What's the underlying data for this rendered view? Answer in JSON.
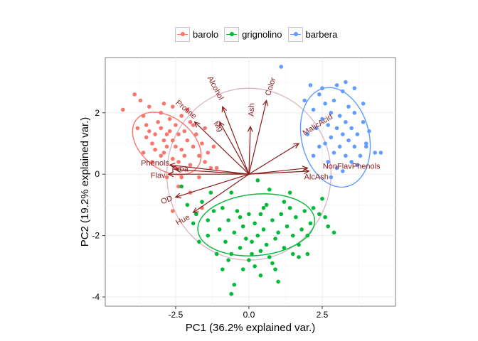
{
  "chart_data": {
    "type": "scatter",
    "title": "",
    "xlabel": "PC1 (36.2% explained var.)",
    "ylabel": "PC2 (19.2% explained var.)",
    "xlim": [
      -4.9,
      5.0
    ],
    "ylim": [
      -4.3,
      3.8
    ],
    "x_ticks": [
      -2.5,
      0.0,
      2.5
    ],
    "x_tick_labels": [
      "-2.5",
      "0.0",
      "2.5"
    ],
    "y_ticks": [
      -4,
      -2,
      0,
      2
    ],
    "y_tick_labels": [
      "-4",
      "-2",
      "0",
      "2"
    ],
    "grid": true,
    "legend_position": "top",
    "series": [
      {
        "name": "barolo",
        "color": "#F8766D",
        "ellipse": {
          "cx": -2.8,
          "cy": 1.0,
          "rx": 1.3,
          "ry": 0.85,
          "angle_deg": -35
        },
        "points": [
          [
            -4.3,
            2.1
          ],
          [
            -3.9,
            2.6
          ],
          [
            -3.7,
            2.4
          ],
          [
            -3.6,
            1.9
          ],
          [
            -3.5,
            1.6
          ],
          [
            -3.4,
            1.4
          ],
          [
            -3.5,
            1.2
          ],
          [
            -3.3,
            1.0
          ],
          [
            -3.2,
            0.8
          ],
          [
            -3.2,
            1.3
          ],
          [
            -3.1,
            1.7
          ],
          [
            -3.0,
            2.0
          ],
          [
            -3.0,
            1.5
          ],
          [
            -2.9,
            1.1
          ],
          [
            -2.9,
            0.7
          ],
          [
            -2.8,
            1.3
          ],
          [
            -2.8,
            0.9
          ],
          [
            -2.7,
            1.8
          ],
          [
            -2.7,
            1.4
          ],
          [
            -2.6,
            1.1
          ],
          [
            -2.6,
            0.5
          ],
          [
            -2.5,
            1.6
          ],
          [
            -2.5,
            0.9
          ],
          [
            -2.4,
            1.3
          ],
          [
            -2.4,
            0.4
          ],
          [
            -2.3,
            1.9
          ],
          [
            -2.3,
            0.8
          ],
          [
            -2.2,
            1.4
          ],
          [
            -2.2,
            0.6
          ],
          [
            -2.1,
            1.1
          ],
          [
            -2.0,
            1.7
          ],
          [
            -2.0,
            0.3
          ],
          [
            -1.9,
            0.9
          ],
          [
            -1.8,
            1.3
          ],
          [
            -1.7,
            0.6
          ],
          [
            -1.6,
            1.0
          ],
          [
            -1.5,
            0.4
          ],
          [
            -1.4,
            0.7
          ],
          [
            -1.3,
            0.2
          ],
          [
            -3.8,
            1.5
          ],
          [
            -3.4,
            2.2
          ],
          [
            -2.9,
            2.3
          ],
          [
            -2.6,
            2.2
          ],
          [
            -2.1,
            2.1
          ],
          [
            -1.9,
            1.6
          ],
          [
            -1.5,
            1.5
          ],
          [
            -1.2,
            0.9
          ],
          [
            -3.6,
            0.7
          ],
          [
            -3.0,
            0.6
          ],
          [
            -2.5,
            0.2
          ],
          [
            -2.3,
            -0.1
          ],
          [
            -2.8,
            -0.1
          ],
          [
            -1.7,
            -0.1
          ],
          [
            -1.1,
            0.2
          ],
          [
            -3.3,
            0.4
          ],
          [
            -2.4,
            -0.4
          ],
          [
            -2.0,
            -0.6
          ],
          [
            -1.6,
            -1.1
          ],
          [
            -2.6,
            -1.2
          ]
        ]
      },
      {
        "name": "grignolino",
        "color": "#00BA38",
        "ellipse": {
          "cx": 0.25,
          "cy": -1.65,
          "rx": 2.0,
          "ry": 1.0,
          "angle_deg": 5
        },
        "points": [
          [
            -2.3,
            -0.4
          ],
          [
            -2.1,
            -1.0
          ],
          [
            -1.8,
            -1.3
          ],
          [
            -1.6,
            -0.9
          ],
          [
            -1.4,
            -1.5
          ],
          [
            -1.2,
            -1.2
          ],
          [
            -1.0,
            -1.8
          ],
          [
            -0.9,
            -1.1
          ],
          [
            -0.8,
            -2.2
          ],
          [
            -0.7,
            -1.5
          ],
          [
            -0.6,
            -2.6
          ],
          [
            -0.5,
            -1.9
          ],
          [
            -0.4,
            -1.2
          ],
          [
            -0.3,
            -2.4
          ],
          [
            -0.2,
            -1.7
          ],
          [
            -0.1,
            -2.1
          ],
          [
            0.0,
            -1.3
          ],
          [
            0.0,
            -2.8
          ],
          [
            0.1,
            -2.2
          ],
          [
            0.2,
            -1.6
          ],
          [
            0.2,
            -3.0
          ],
          [
            0.3,
            -2.0
          ],
          [
            0.4,
            -1.3
          ],
          [
            0.4,
            -2.5
          ],
          [
            0.5,
            -1.8
          ],
          [
            0.6,
            -2.3
          ],
          [
            0.6,
            -1.0
          ],
          [
            0.7,
            -2.7
          ],
          [
            0.8,
            -1.5
          ],
          [
            0.9,
            -2.1
          ],
          [
            1.0,
            -1.9
          ],
          [
            1.1,
            -1.3
          ],
          [
            1.2,
            -2.4
          ],
          [
            1.3,
            -1.7
          ],
          [
            1.4,
            -1.1
          ],
          [
            1.5,
            -2.0
          ],
          [
            1.6,
            -1.4
          ],
          [
            1.7,
            -2.3
          ],
          [
            1.8,
            -1.8
          ],
          [
            1.9,
            -1.2
          ],
          [
            2.0,
            -2.0
          ],
          [
            2.1,
            -1.6
          ],
          [
            2.2,
            -1.1
          ],
          [
            2.4,
            -1.3
          ],
          [
            2.5,
            -0.8
          ],
          [
            2.6,
            -1.4
          ],
          [
            2.7,
            -1.7
          ],
          [
            1.4,
            -0.6
          ],
          [
            0.7,
            -0.5
          ],
          [
            0.3,
            -0.2
          ],
          [
            -0.6,
            -0.6
          ],
          [
            -1.3,
            -0.6
          ],
          [
            0.9,
            -3.1
          ],
          [
            1.0,
            -3.5
          ],
          [
            -0.5,
            -3.6
          ],
          [
            -0.6,
            -3.9
          ],
          [
            -0.9,
            -3.1
          ],
          [
            0.4,
            -3.3
          ],
          [
            -1.7,
            -2.2
          ],
          [
            -1.1,
            -2.6
          ],
          [
            -0.2,
            -3.1
          ],
          [
            0.8,
            -2.9
          ],
          [
            1.7,
            -2.7
          ],
          [
            2.0,
            -2.6
          ],
          [
            -1.4,
            -2.0
          ],
          [
            -0.3,
            -1.4
          ],
          [
            0.5,
            -1.1
          ],
          [
            1.2,
            -0.9
          ],
          [
            -1.9,
            -1.6
          ],
          [
            2.9,
            -1.9
          ],
          [
            -0.7,
            -2.8
          ],
          [
            0.1,
            -2.6
          ],
          [
            1.5,
            -2.6
          ]
        ]
      },
      {
        "name": "barbera",
        "color": "#619CFF",
        "ellipse": {
          "cx": 2.95,
          "cy": 1.2,
          "rx": 1.15,
          "ry": 1.65,
          "angle_deg": 15
        },
        "points": [
          [
            1.1,
            3.5
          ],
          [
            2.2,
            2.1
          ],
          [
            2.3,
            1.5
          ],
          [
            2.4,
            2.6
          ],
          [
            2.5,
            1.8
          ],
          [
            2.6,
            2.3
          ],
          [
            2.6,
            1.0
          ],
          [
            2.7,
            1.6
          ],
          [
            2.7,
            0.4
          ],
          [
            2.8,
            2.0
          ],
          [
            2.8,
            1.2
          ],
          [
            2.9,
            0.7
          ],
          [
            2.9,
            2.4
          ],
          [
            3.0,
            1.5
          ],
          [
            3.0,
            0.2
          ],
          [
            3.1,
            1.9
          ],
          [
            3.1,
            0.9
          ],
          [
            3.2,
            1.3
          ],
          [
            3.2,
            2.7
          ],
          [
            3.3,
            0.6
          ],
          [
            3.3,
            1.7
          ],
          [
            3.4,
            1.1
          ],
          [
            3.4,
            2.2
          ],
          [
            3.5,
            0.4
          ],
          [
            3.5,
            1.5
          ],
          [
            3.6,
            0.9
          ],
          [
            3.6,
            2.0
          ],
          [
            3.7,
            1.3
          ],
          [
            3.8,
            0.6
          ],
          [
            3.9,
            1.7
          ],
          [
            4.0,
            0.9
          ],
          [
            4.1,
            1.4
          ],
          [
            4.3,
            0.7
          ],
          [
            4.5,
            0.7
          ],
          [
            2.4,
            0.9
          ],
          [
            2.2,
            0.6
          ],
          [
            2.0,
            1.3
          ],
          [
            1.9,
            2.4
          ],
          [
            2.1,
            2.9
          ],
          [
            2.5,
            2.8
          ],
          [
            3.0,
            2.9
          ],
          [
            3.3,
            3.0
          ],
          [
            3.6,
            2.8
          ],
          [
            3.9,
            2.3
          ],
          [
            4.0,
            1.0
          ],
          [
            3.7,
            0.3
          ],
          [
            3.2,
            0.1
          ],
          [
            2.8,
            -0.1
          ]
        ]
      }
    ],
    "circle": {
      "cx": 0.0,
      "cy": 0.0,
      "r": 2.8,
      "color": "#D8B4C4"
    },
    "arrows_color": "#8B1A1A",
    "arrows": [
      {
        "label": "Alcohol",
        "x": -0.9,
        "y": 2.2,
        "lx": -1.15,
        "ly": 2.8,
        "rot": 62
      },
      {
        "label": "Ash",
        "x": 0.05,
        "y": 1.55,
        "lx": 0.1,
        "ly": 2.1,
        "rot": -88
      },
      {
        "label": "Color",
        "x": 0.6,
        "y": 2.4,
        "lx": 0.75,
        "ly": 2.85,
        "rot": -72
      },
      {
        "label": "Mg",
        "x": -1.0,
        "y": 1.7,
        "lx": -1.05,
        "ly": 1.55,
        "rot": 55
      },
      {
        "label": "Proline",
        "x": -1.85,
        "y": 1.7,
        "lx": -2.15,
        "ly": 2.1,
        "rot": 40
      },
      {
        "label": "MalicAcid",
        "x": 1.7,
        "y": 1.0,
        "lx": 2.35,
        "ly": 1.6,
        "rot": -32
      },
      {
        "label": "Phenols",
        "x": -2.7,
        "y": 0.3,
        "lx": -3.2,
        "ly": 0.35,
        "rot": 0
      },
      {
        "label": "Proa",
        "x": -2.5,
        "y": 0.15,
        "lx": -2.35,
        "ly": 0.15,
        "rot": 0
      },
      {
        "label": "Flav",
        "x": -2.75,
        "y": 0.0,
        "lx": -3.1,
        "ly": -0.05,
        "rot": 0
      },
      {
        "label": "NonFlavPhenols",
        "x": 2.0,
        "y": 0.2,
        "lx": 3.5,
        "ly": 0.25,
        "rot": 0
      },
      {
        "label": "AlcAsh",
        "x": 2.05,
        "y": 0.1,
        "lx": 2.3,
        "ly": -0.1,
        "rot": 0
      },
      {
        "label": "OD",
        "x": -2.5,
        "y": -0.75,
        "lx": -2.8,
        "ly": -0.85,
        "rot": -20
      },
      {
        "label": "Hue",
        "x": -1.9,
        "y": -1.25,
        "lx": -2.25,
        "ly": -1.5,
        "rot": -28
      }
    ]
  }
}
